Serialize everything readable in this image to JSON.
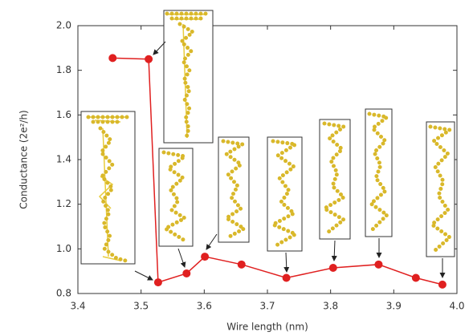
{
  "chart_data": {
    "type": "line",
    "x_label": "Wire length (nm)",
    "y_label": "Conductance (2e²/h)",
    "x": [
      3.455,
      3.512,
      3.527,
      3.572,
      3.601,
      3.659,
      3.73,
      3.804,
      3.876,
      3.935,
      3.977
    ],
    "series": [
      {
        "color": "#e02020",
        "values": [
          1.855,
          1.85,
          0.85,
          0.89,
          0.965,
          0.93,
          0.87,
          0.915,
          0.93,
          0.87,
          0.84
        ]
      }
    ],
    "xlim": [
      3.4,
      4.0
    ],
    "xticks": [
      3.4,
      3.5,
      3.6,
      3.7,
      3.8,
      3.9,
      {
        "value": 4,
        "label": "4.0"
      }
    ],
    "ylim": [
      0.8,
      2.0
    ],
    "yticks": [
      0.8,
      {
        "value": 1,
        "label": "1.0"
      },
      1.2,
      1.4,
      1.6,
      1.8,
      {
        "value": 2,
        "label": "2.0"
      }
    ]
  }
}
